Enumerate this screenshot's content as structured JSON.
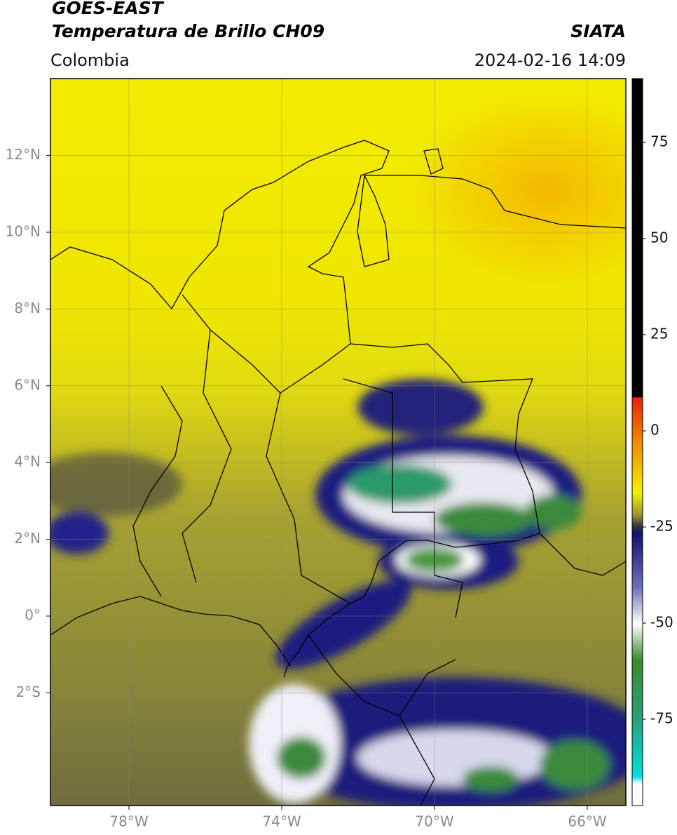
{
  "header": {
    "title": "GOES-EAST",
    "subtitle": "Temperatura de Brillo CH09",
    "source": "SIATA",
    "region": "Colombia",
    "timestamp": "2024-02-16 14:09"
  },
  "map": {
    "lat_ticks": [
      {
        "value": 12,
        "label": "12°N"
      },
      {
        "value": 10,
        "label": "10°N"
      },
      {
        "value": 8,
        "label": "8°N"
      },
      {
        "value": 6,
        "label": "6°N"
      },
      {
        "value": 4,
        "label": "4°N"
      },
      {
        "value": 2,
        "label": "2°N"
      },
      {
        "value": 0,
        "label": "0°"
      },
      {
        "value": -2,
        "label": "2°S"
      }
    ],
    "lon_ticks": [
      {
        "value": -78,
        "label": "78°W"
      },
      {
        "value": -74,
        "label": "74°W"
      },
      {
        "value": -70,
        "label": "70°W"
      },
      {
        "value": -66,
        "label": "66°W"
      }
    ],
    "grid": true
  },
  "colorbar": {
    "ticks": [
      75,
      50,
      25,
      0,
      -25,
      -50,
      -75
    ]
  }
}
